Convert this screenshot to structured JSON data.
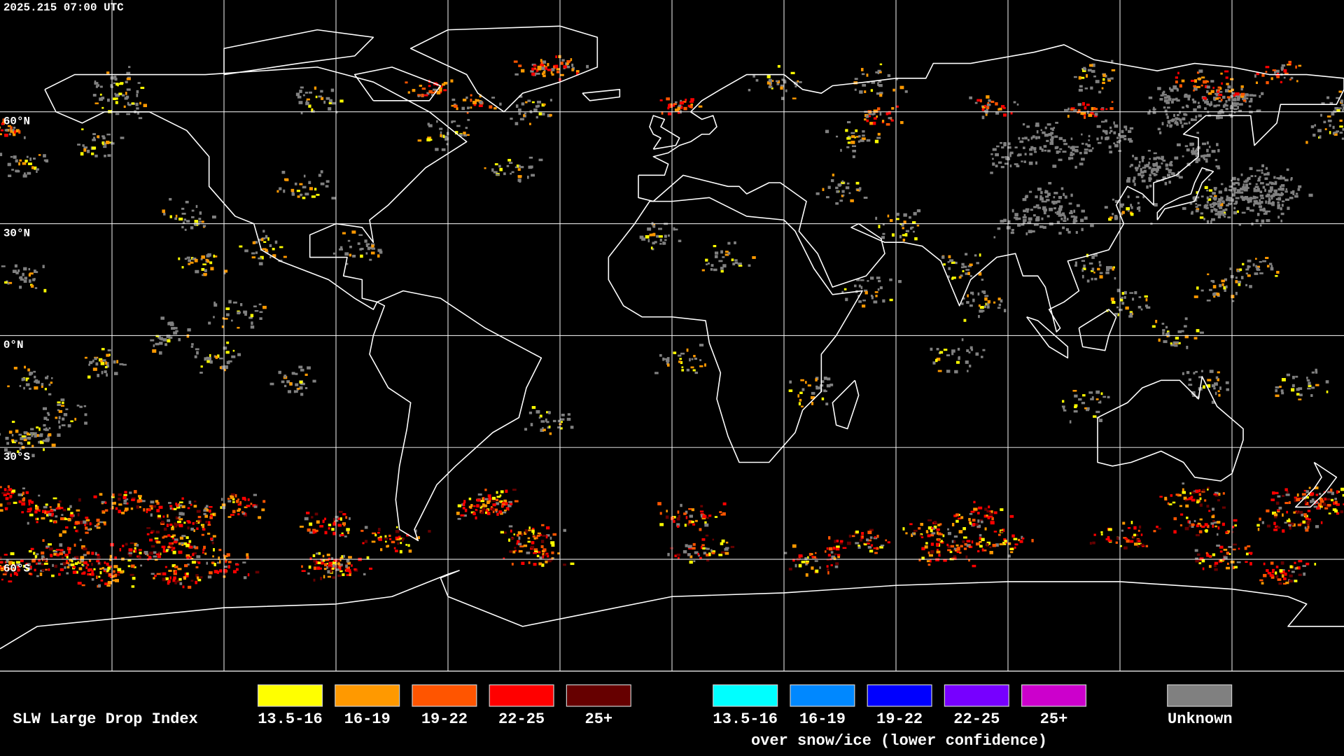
{
  "header": {
    "timestamp": "2025.215 07:00 UTC"
  },
  "map": {
    "latitude_labels": [
      "60°N",
      "30°N",
      "0°N",
      "30°S",
      "60°S"
    ]
  },
  "legend": {
    "title": "SLW Large Drop Index",
    "groups": [
      {
        "items": [
          {
            "label": "13.5-16",
            "color": "#ffff00"
          },
          {
            "label": "16-19",
            "color": "#ff9900"
          },
          {
            "label": "19-22",
            "color": "#ff5500"
          },
          {
            "label": "22-25",
            "color": "#ff0000"
          },
          {
            "label": "25+",
            "color": "#660000"
          }
        ]
      },
      {
        "items": [
          {
            "label": "13.5-16",
            "color": "#00ffff"
          },
          {
            "label": "16-19",
            "color": "#0088ff"
          },
          {
            "label": "19-22",
            "color": "#0000ff"
          },
          {
            "label": "22-25",
            "color": "#7700ff"
          },
          {
            "label": "25+",
            "color": "#cc00cc"
          }
        ],
        "caption": "over snow/ice (lower confidence)"
      }
    ],
    "unknown": {
      "label": "Unknown",
      "color": "#808080"
    }
  }
}
